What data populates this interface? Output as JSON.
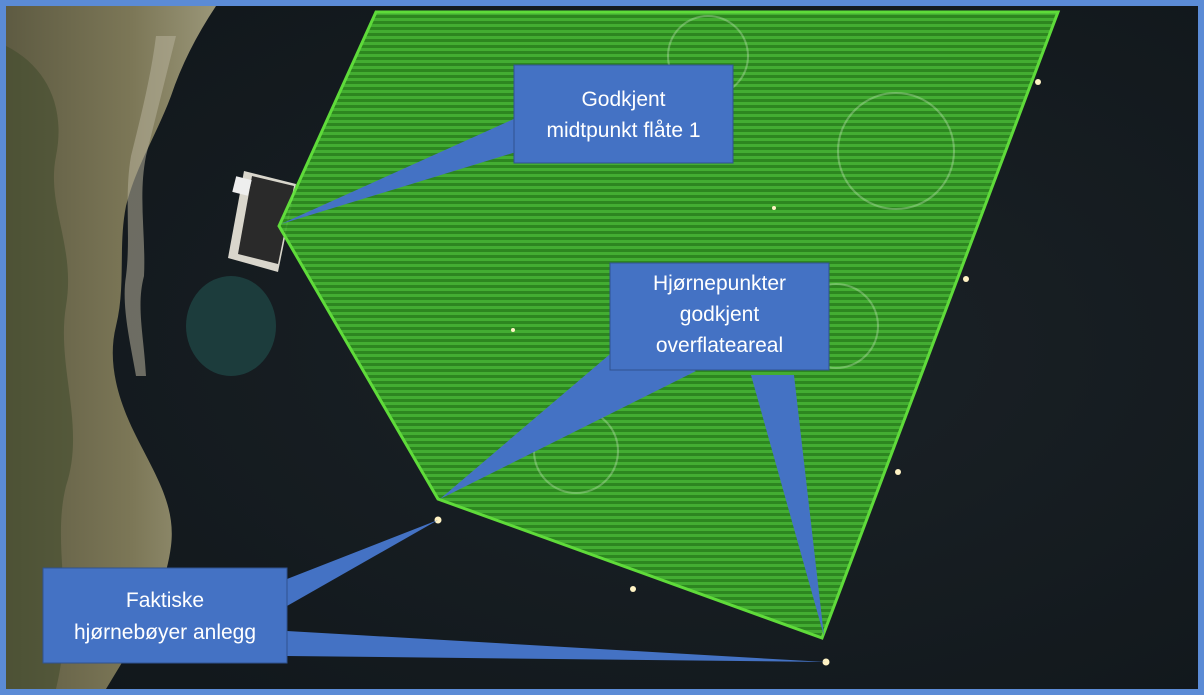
{
  "map": {
    "view": "satellite",
    "colors": {
      "sea": "#161c21",
      "land": "#6e6a4e",
      "approved_area_fill": "#3fae2c",
      "approved_area_outline": "#63e63c",
      "callout": "#4472c4",
      "callout_border": "#2f528f",
      "buoy": "#fff3c4"
    },
    "features": {
      "approved_area": "approved-surface-area-polygon",
      "raft": "feed-raft",
      "buoys": "corner-buoys"
    },
    "callouts": {
      "midpoint": [
        "Godkjent",
        "midtpunkt flåte 1"
      ],
      "corners": [
        "Hjørnepunkter",
        "godkjent",
        "overflateareal"
      ],
      "buoys": [
        "Faktiske",
        "hjørnebøyer anlegg"
      ]
    }
  }
}
